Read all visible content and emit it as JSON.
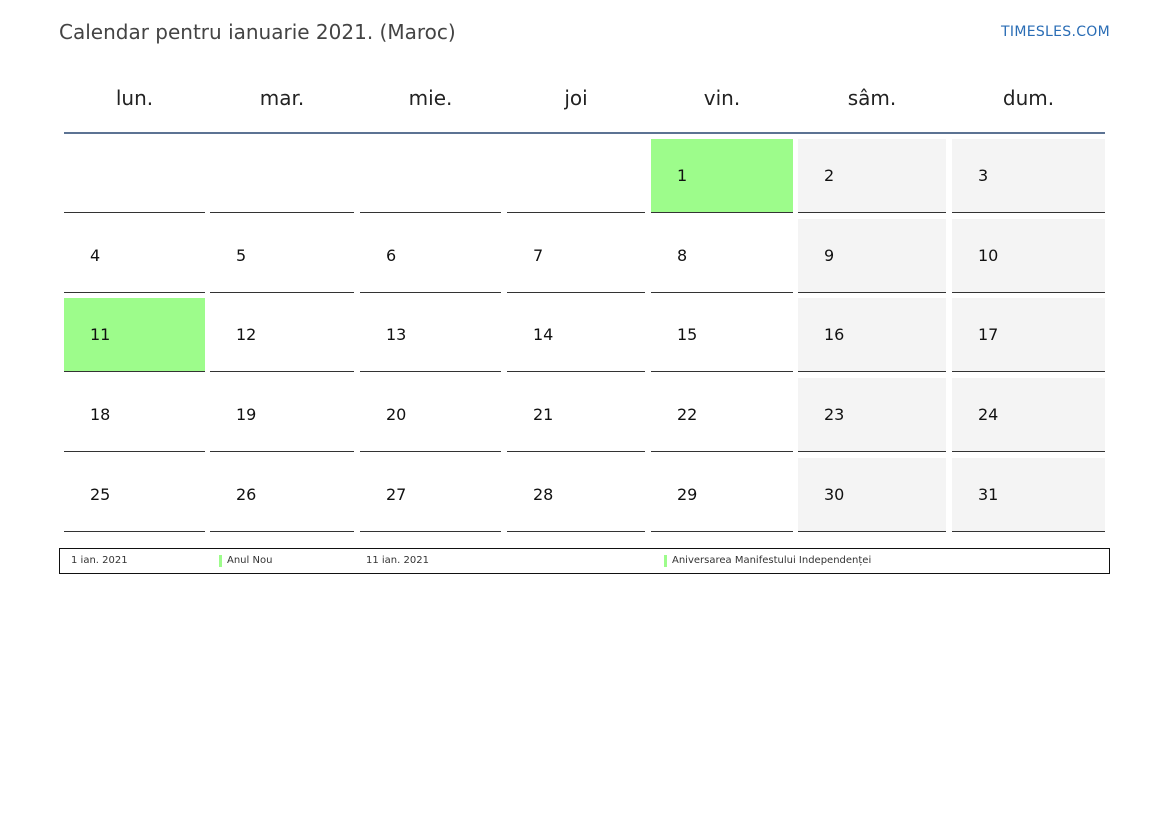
{
  "header": {
    "title": "Calendar pentru ianuarie 2021. (Maroc)",
    "brand": "TIMESLES.COM"
  },
  "weekdays": [
    "lun.",
    "mar.",
    "mie.",
    "joi",
    "vin.",
    "sâm.",
    "dum."
  ],
  "weeks": [
    [
      "",
      "",
      "",
      "",
      "1",
      "2",
      "3"
    ],
    [
      "4",
      "5",
      "6",
      "7",
      "8",
      "9",
      "10"
    ],
    [
      "11",
      "12",
      "13",
      "14",
      "15",
      "16",
      "17"
    ],
    [
      "18",
      "19",
      "20",
      "21",
      "22",
      "23",
      "24"
    ],
    [
      "25",
      "26",
      "27",
      "28",
      "29",
      "30",
      "31"
    ]
  ],
  "holidays": [
    {
      "day": "1",
      "date": "1 ian. 2021",
      "name": "Anul Nou"
    },
    {
      "day": "11",
      "date": "11 ian. 2021",
      "name": "Aniversarea Manifestului Independenței"
    }
  ],
  "colors": {
    "holiday": "#9dfc8b",
    "weekend": "#f4f4f4",
    "header_rule": "#5c7393",
    "brand": "#2a6db5"
  }
}
